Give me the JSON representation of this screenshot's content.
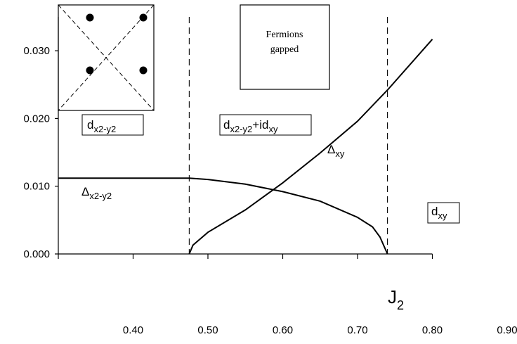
{
  "chart_data": {
    "type": "line",
    "title": "",
    "xlabel": "J",
    "xlabel_sub": "2",
    "ylabel": "",
    "xlim": [
      0.3,
      0.9
    ],
    "ylim": [
      0.0,
      0.035
    ],
    "x_ticks": [
      "0.40",
      "0.50",
      "0.60",
      "0.70",
      "0.80",
      "0.90"
    ],
    "y_ticks": [
      "0.000",
      "0.010",
      "0.020",
      "0.030"
    ],
    "grid": false,
    "legend": "none",
    "series": [
      {
        "name": "Δx2-y2",
        "x": [
          0.3,
          0.4,
          0.475,
          0.5,
          0.55,
          0.6,
          0.65,
          0.7,
          0.72,
          0.73,
          0.74
        ],
        "y": [
          0.0112,
          0.0112,
          0.0112,
          0.011,
          0.0103,
          0.0092,
          0.0078,
          0.0054,
          0.004,
          0.0025,
          0.0
        ]
      },
      {
        "name": "Δxy",
        "x": [
          0.475,
          0.48,
          0.5,
          0.55,
          0.6,
          0.65,
          0.7,
          0.74,
          0.8
        ],
        "y": [
          0.0,
          0.0013,
          0.0032,
          0.0065,
          0.0105,
          0.0149,
          0.0196,
          0.0242,
          0.0317
        ]
      }
    ],
    "phase_boundaries": [
      0.475,
      0.74
    ],
    "annotations": {
      "region_left": {
        "base": "d",
        "sub": "x2-y2"
      },
      "region_mid": {
        "base": "d",
        "sub1": "x2-y2",
        "mid": "+id",
        "sub2": "xy"
      },
      "region_right": {
        "base": "d",
        "sub": "xy"
      },
      "series_label_1": {
        "base": "Δ",
        "sub": "x2-y2"
      },
      "series_label_2": {
        "base": "Δ",
        "sub": "xy"
      },
      "fermions_line1": "Fermions",
      "fermions_line2": "gapped"
    }
  }
}
